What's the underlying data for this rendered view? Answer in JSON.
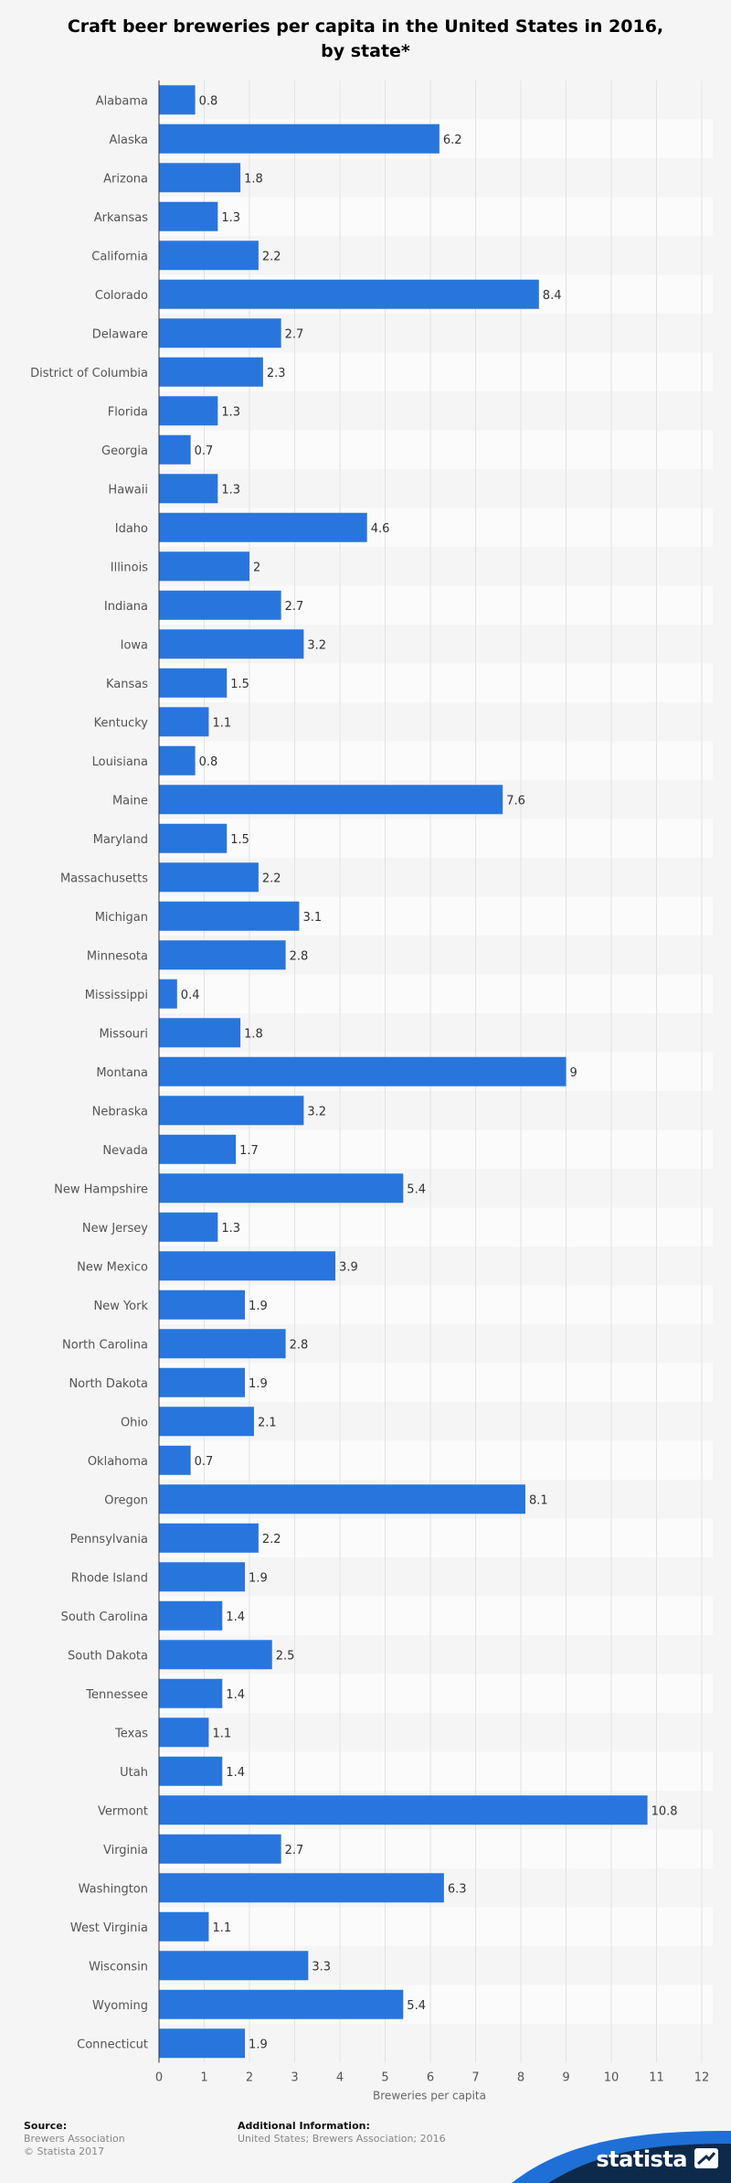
{
  "chart_data": {
    "type": "bar",
    "orientation": "horizontal",
    "title": "Craft beer breweries per capita in the United States in 2016, by state*",
    "xlabel": "Breweries per capita",
    "ylabel": "",
    "xlim": [
      0,
      12
    ],
    "xticks": [
      0,
      1,
      2,
      3,
      4,
      5,
      6,
      7,
      8,
      9,
      10,
      11,
      12
    ],
    "grid": true,
    "bar_color": "#2876dd",
    "categories": [
      "Alabama",
      "Alaska",
      "Arizona",
      "Arkansas",
      "California",
      "Colorado",
      "Delaware",
      "District of Columbia",
      "Florida",
      "Georgia",
      "Hawaii",
      "Idaho",
      "Illinois",
      "Indiana",
      "Iowa",
      "Kansas",
      "Kentucky",
      "Louisiana",
      "Maine",
      "Maryland",
      "Massachusetts",
      "Michigan",
      "Minnesota",
      "Mississippi",
      "Missouri",
      "Montana",
      "Nebraska",
      "Nevada",
      "New Hampshire",
      "New Jersey",
      "New Mexico",
      "New York",
      "North Carolina",
      "North Dakota",
      "Ohio",
      "Oklahoma",
      "Oregon",
      "Pennsylvania",
      "Rhode Island",
      "South Carolina",
      "South Dakota",
      "Tennessee",
      "Texas",
      "Utah",
      "Vermont",
      "Virginia",
      "Washington",
      "West Virginia",
      "Wisconsin",
      "Wyoming",
      "Connecticut"
    ],
    "values": [
      0.8,
      6.2,
      1.8,
      1.3,
      2.2,
      8.4,
      2.7,
      2.3,
      1.3,
      0.7,
      1.3,
      4.6,
      2,
      2.7,
      3.2,
      1.5,
      1.1,
      0.8,
      7.6,
      1.5,
      2.2,
      3.1,
      2.8,
      0.4,
      1.8,
      9,
      3.2,
      1.7,
      5.4,
      1.3,
      3.9,
      1.9,
      2.8,
      1.9,
      2.1,
      0.7,
      8.1,
      2.2,
      1.9,
      1.4,
      2.5,
      1.4,
      1.1,
      1.4,
      10.8,
      2.7,
      6.3,
      1.1,
      3.3,
      5.4,
      1.9
    ]
  },
  "footer": {
    "source_heading": "Source:",
    "source_lines": [
      "Brewers Association",
      "© Statista 2017"
    ],
    "info_heading": "Additional Information:",
    "info_lines": [
      "United States; Brewers Association; 2016"
    ],
    "brand": "statista",
    "brand_color": "#0d2a4a",
    "wave_color": "#1f6fd6"
  }
}
